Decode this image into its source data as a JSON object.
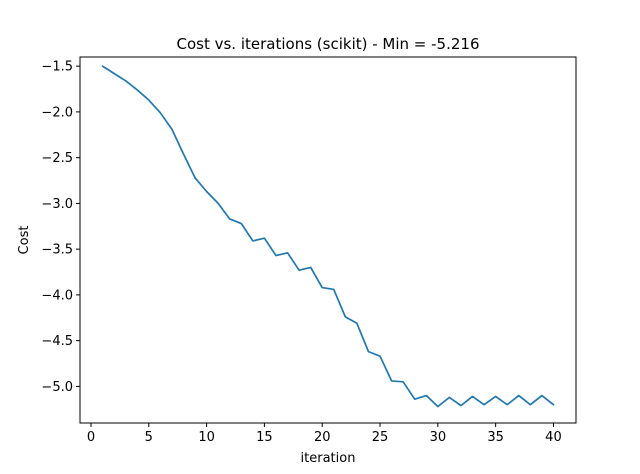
{
  "chart_data": {
    "type": "line",
    "title": "Cost vs. iterations (scikit) - Min = -5.216",
    "xlabel": "iteration",
    "ylabel": "Cost",
    "xlim": [
      -0.95,
      41.95
    ],
    "ylim": [
      -5.4,
      -1.4
    ],
    "xticks": [
      0,
      5,
      10,
      15,
      20,
      25,
      30,
      35,
      40
    ],
    "yticks": [
      -1.5,
      -2.0,
      -2.5,
      -3.0,
      -3.5,
      -4.0,
      -4.5,
      -5.0
    ],
    "xtick_labels": [
      "0",
      "5",
      "10",
      "15",
      "20",
      "25",
      "30",
      "35",
      "40"
    ],
    "ytick_labels": [
      "−1.5",
      "−2.0",
      "−2.5",
      "−3.0",
      "−3.5",
      "−4.0",
      "−4.5",
      "−5.0"
    ],
    "grid": false,
    "series": [
      {
        "color": "#1f77b4",
        "x": [
          1,
          2,
          3,
          4,
          5,
          6,
          7,
          8,
          9,
          10,
          11,
          12,
          13,
          14,
          15,
          16,
          17,
          18,
          19,
          20,
          21,
          22,
          23,
          24,
          25,
          26,
          27,
          28,
          29,
          30,
          31,
          32,
          33,
          34,
          35,
          36,
          37,
          38,
          39,
          40
        ],
        "values": [
          -1.5,
          -1.58,
          -1.66,
          -1.76,
          -1.87,
          -2.01,
          -2.19,
          -2.46,
          -2.72,
          -2.87,
          -3.0,
          -3.17,
          -3.22,
          -3.41,
          -3.38,
          -3.57,
          -3.54,
          -3.73,
          -3.7,
          -3.92,
          -3.94,
          -4.24,
          -4.31,
          -4.62,
          -4.67,
          -4.94,
          -4.95,
          -5.14,
          -5.1,
          -5.22,
          -5.12,
          -5.21,
          -5.11,
          -5.2,
          -5.11,
          -5.2,
          -5.1,
          -5.2,
          -5.1,
          -5.2
        ]
      }
    ]
  }
}
